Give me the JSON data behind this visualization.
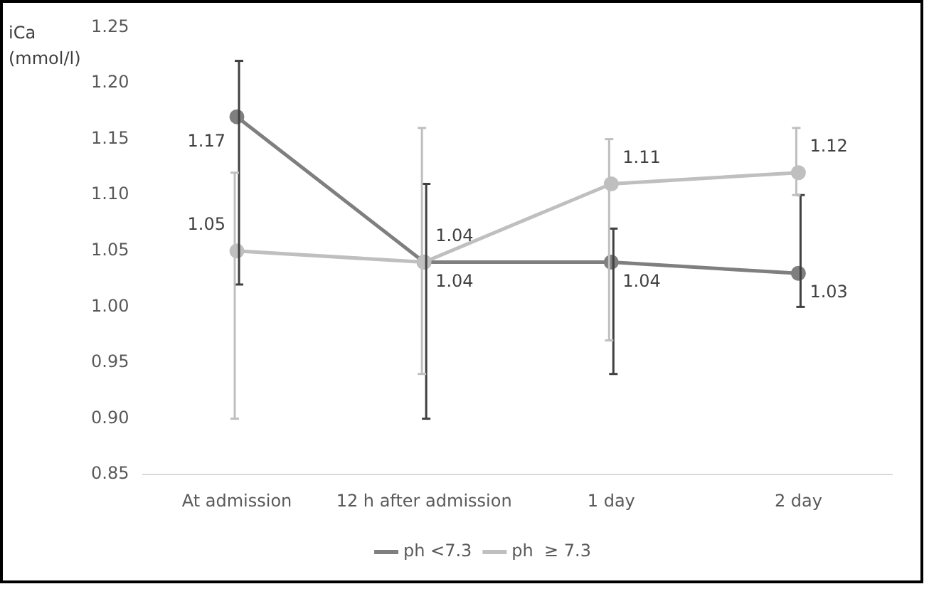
{
  "chart_data": {
    "type": "line",
    "ylabel": "iCa (mmol/l)",
    "categories": [
      "At admission",
      "12 h after admission",
      "1 day",
      "2 day"
    ],
    "series": [
      {
        "name": "ph <7.3",
        "color": "#7f7f7f",
        "values": [
          1.17,
          1.04,
          1.04,
          1.03
        ],
        "errors": [
          [
            1.02,
            1.22
          ],
          [
            0.9,
            1.11
          ],
          [
            0.94,
            1.07
          ],
          [
            1.0,
            1.1
          ]
        ]
      },
      {
        "name": "ph  ≥ 7.3",
        "color": "#bfbfbf",
        "values": [
          1.05,
          1.04,
          1.11,
          1.12
        ],
        "errors": [
          [
            0.9,
            1.12
          ],
          [
            0.94,
            1.16
          ],
          [
            0.97,
            1.15
          ],
          [
            1.1,
            1.16
          ]
        ]
      }
    ],
    "ylim": [
      0.85,
      1.25
    ],
    "yticks": [
      0.85,
      {
        "value": 0.9,
        "label": "0.90"
      },
      0.95,
      {
        "value": 1.0,
        "label": "1.00"
      },
      1.05,
      {
        "value": 1.1,
        "label": "1.10"
      },
      1.15,
      {
        "value": 1.2,
        "label": "1.20"
      },
      1.25
    ],
    "grid": false,
    "legend": "bottom",
    "marker": "circle",
    "line_style": "solid",
    "data_labels": true
  }
}
